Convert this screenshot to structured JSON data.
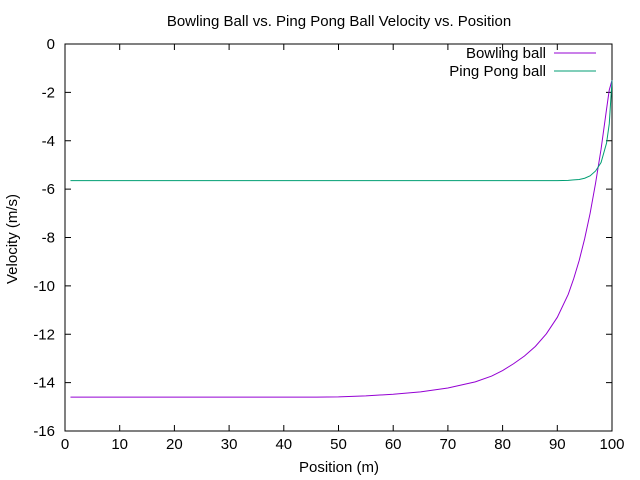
{
  "chart_data": {
    "type": "line",
    "title": "Bowling Ball vs. Ping Pong Ball Velocity vs. Position",
    "xlabel": "Position (m)",
    "ylabel": "Velocity (m/s)",
    "xlim": [
      0,
      100
    ],
    "ylim": [
      -16,
      0
    ],
    "x_ticks": [
      0,
      10,
      20,
      30,
      40,
      50,
      60,
      70,
      80,
      90,
      100
    ],
    "y_ticks": [
      0,
      -2,
      -4,
      -6,
      -8,
      -10,
      -12,
      -14,
      -16
    ],
    "grid": false,
    "legend_position": "top-right",
    "series": [
      {
        "name": "Bowling ball",
        "color": "#9400d3",
        "x": [
          1,
          10,
          20,
          30,
          40,
          46,
          50,
          55,
          60,
          65,
          70,
          75,
          78,
          80,
          82,
          84,
          86,
          88,
          90,
          92,
          93,
          94,
          95,
          96,
          97,
          98,
          99,
          99.5,
          100
        ],
        "y": [
          -14.6,
          -14.6,
          -14.6,
          -14.6,
          -14.6,
          -14.6,
          -14.59,
          -14.55,
          -14.48,
          -14.38,
          -14.22,
          -13.97,
          -13.73,
          -13.5,
          -13.22,
          -12.9,
          -12.5,
          -11.98,
          -11.3,
          -10.35,
          -9.7,
          -8.95,
          -8.05,
          -7.0,
          -5.75,
          -4.35,
          -2.7,
          -1.9,
          -1.5
        ]
      },
      {
        "name": "Ping Pong ball",
        "color": "#009e73",
        "x": [
          1,
          10,
          20,
          30,
          40,
          50,
          60,
          70,
          80,
          90,
          92,
          93,
          94,
          95,
          96,
          97,
          98,
          99,
          99.5,
          100
        ],
        "y": [
          -5.65,
          -5.65,
          -5.65,
          -5.65,
          -5.65,
          -5.65,
          -5.65,
          -5.65,
          -5.65,
          -5.65,
          -5.64,
          -5.62,
          -5.6,
          -5.55,
          -5.45,
          -5.25,
          -4.9,
          -4.1,
          -3.3,
          -1.5
        ]
      }
    ]
  }
}
